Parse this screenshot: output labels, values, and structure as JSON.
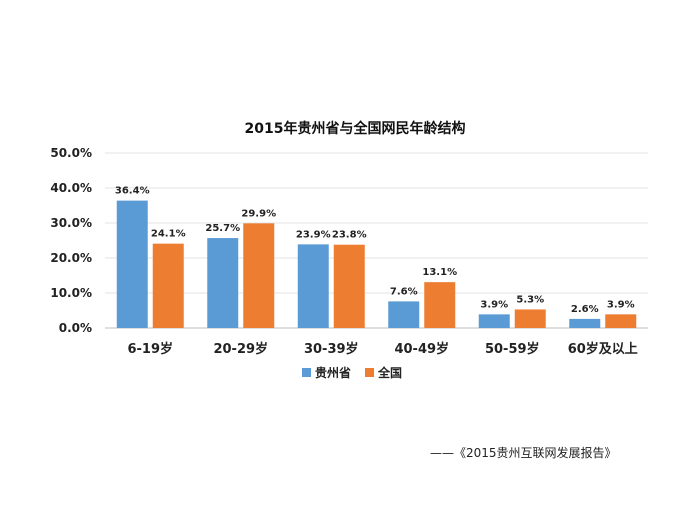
{
  "chart_data": {
    "type": "bar",
    "title": "2015年贵州省与全国网民年龄结构",
    "categories": [
      "6-19岁",
      "20-29岁",
      "30-39岁",
      "40-49岁",
      "50-59岁",
      "60岁及以上"
    ],
    "series": [
      {
        "name": "贵州省",
        "color": "#5b9bd5",
        "values": [
          36.4,
          25.7,
          23.9,
          7.6,
          3.9,
          2.6
        ]
      },
      {
        "name": "全国",
        "color": "#ed7d31",
        "values": [
          24.1,
          29.9,
          23.8,
          13.1,
          5.3,
          3.9
        ]
      }
    ],
    "y_ticks": [
      "0.0%",
      "10.0%",
      "20.0%",
      "30.0%",
      "40.0%",
      "50.0%"
    ],
    "ylim": [
      0,
      50
    ],
    "grid": true,
    "legend_position": "bottom",
    "data_label_suffix": "%"
  },
  "source_note": "——《2015贵州互联网发展报告》"
}
